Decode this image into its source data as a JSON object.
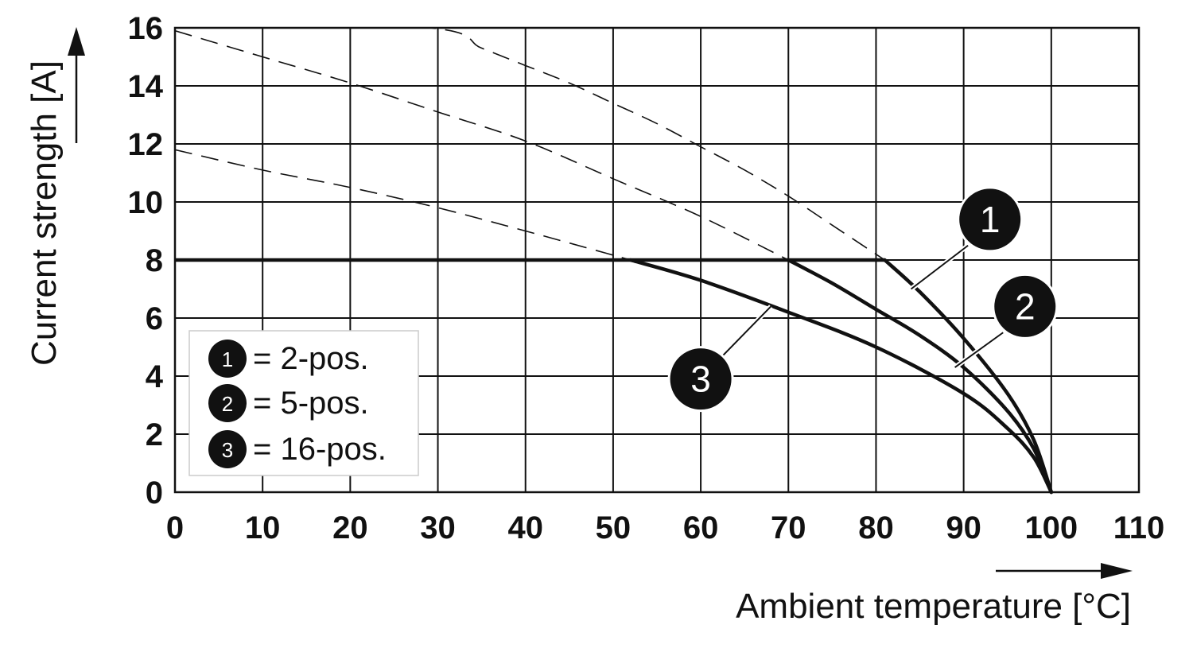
{
  "chart_data": {
    "type": "line",
    "xlabel": "Ambient temperature [°C]",
    "ylabel": "Current strength [A]",
    "xlim": [
      0,
      110
    ],
    "ylim": [
      0,
      16
    ],
    "x_ticks": [
      0,
      10,
      20,
      30,
      40,
      50,
      60,
      70,
      80,
      90,
      100,
      110
    ],
    "y_ticks": [
      0,
      2,
      4,
      6,
      8,
      10,
      12,
      14,
      16
    ],
    "grid": true,
    "legend_position": "bottom-left",
    "limit_line": {
      "value": 8
    },
    "series": [
      {
        "name": "2-pos.",
        "badge": "1",
        "dashed_x": [
          0,
          29,
          35,
          40,
          45,
          50,
          55,
          60,
          65,
          70,
          75,
          81
        ],
        "dashed_y": [
          16.3,
          16.0,
          15.3,
          14.7,
          14.1,
          13.4,
          12.7,
          11.9,
          11.1,
          10.2,
          9.2,
          8.0
        ],
        "x": [
          81,
          85,
          90,
          95,
          98,
          100
        ],
        "y": [
          8.0,
          6.9,
          5.3,
          3.4,
          1.8,
          0
        ]
      },
      {
        "name": "5-pos.",
        "badge": "2",
        "dashed_x": [
          0,
          10,
          20,
          30,
          40,
          50,
          60,
          70
        ],
        "dashed_y": [
          15.9,
          15.0,
          14.1,
          13.1,
          12.1,
          10.8,
          9.5,
          8.0
        ],
        "x": [
          70,
          75,
          80,
          85,
          90,
          95,
          98,
          100
        ],
        "y": [
          8.0,
          7.2,
          6.3,
          5.4,
          4.3,
          2.8,
          1.5,
          0
        ]
      },
      {
        "name": "16-pos.",
        "badge": "3",
        "dashed_x": [
          0,
          10,
          20,
          30,
          40,
          52
        ],
        "dashed_y": [
          11.8,
          11.1,
          10.5,
          9.8,
          9.0,
          8.0
        ],
        "x": [
          52,
          60,
          70,
          80,
          90,
          95,
          98,
          100
        ],
        "y": [
          8.0,
          7.3,
          6.2,
          5.0,
          3.4,
          2.2,
          1.2,
          0
        ]
      }
    ],
    "callouts": [
      {
        "label": "1",
        "x": 93,
        "y": 9.4,
        "line_from": [
          90.5,
          8.5
        ],
        "line_to": [
          84,
          7.0
        ]
      },
      {
        "label": "2",
        "x": 97,
        "y": 6.4,
        "line_from": [
          94.5,
          5.5
        ],
        "line_to": [
          89,
          4.3
        ]
      },
      {
        "label": "3",
        "x": 60,
        "y": 3.9,
        "line_from": [
          62.5,
          4.7
        ],
        "line_to": [
          68,
          6.4
        ]
      }
    ]
  },
  "legend": {
    "items": [
      {
        "badge": "1",
        "text": "= 2-pos."
      },
      {
        "badge": "2",
        "text": "= 5-pos."
      },
      {
        "badge": "3",
        "text": "= 16-pos."
      }
    ]
  }
}
